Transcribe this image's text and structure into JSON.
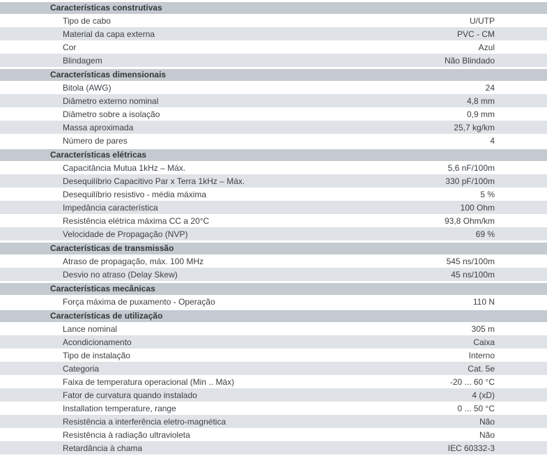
{
  "colors": {
    "header_band": "#c4cad0",
    "row_alt": "#dfe3e7",
    "text": "#3b3f42",
    "header_text": "#33373a"
  },
  "table": {
    "sections": [
      {
        "title": "Características construtivas",
        "rows": [
          {
            "label": "Tipo de cabo",
            "value": "U/UTP"
          },
          {
            "label": "Material da capa externa",
            "value": "PVC - CM"
          },
          {
            "label": "Cor",
            "value": "Azul"
          },
          {
            "label": "Blindagem",
            "value": "Não Blindado"
          }
        ]
      },
      {
        "title": "Características dimensionais",
        "rows": [
          {
            "label": "Bitola (AWG)",
            "value": "24"
          },
          {
            "label": "Diâmetro externo nominal",
            "value": "4,8 mm"
          },
          {
            "label": "Diâmetro sobre a isolação",
            "value": "0,9 mm"
          },
          {
            "label": "Massa aproximada",
            "value": "25,7 kg/km"
          },
          {
            "label": "Número de pares",
            "value": "4"
          }
        ]
      },
      {
        "title": "Características elétricas",
        "rows": [
          {
            "label": "Capacitância Mutua 1kHz – Máx.",
            "value": "5,6 nF/100m"
          },
          {
            "label": "Desequilíbrio Capacitivo Par x Terra 1kHz – Máx.",
            "value": "330 pF/100m"
          },
          {
            "label": "Desequilíbrio resistivo - média máxima",
            "value": "5 %"
          },
          {
            "label": "Impedância característica",
            "value": "100 Ohm"
          },
          {
            "label": "Resistência elétrica máxima CC a 20°C",
            "value": "93,8 Ohm/km"
          },
          {
            "label": "Velocidade de Propagação (NVP)",
            "value": "69 %"
          }
        ]
      },
      {
        "title": "Características de transmissão",
        "rows": [
          {
            "label": "Atraso de propagação, máx. 100 MHz",
            "value": "545 ns/100m"
          },
          {
            "label": "Desvio no atraso (Delay Skew)",
            "value": "45 ns/100m"
          }
        ]
      },
      {
        "title": "Características mecânicas",
        "rows": [
          {
            "label": "Força máxima de puxamento - Operação",
            "value": "110 N"
          }
        ]
      },
      {
        "title": "Características de utilização",
        "rows": [
          {
            "label": "Lance nominal",
            "value": "305 m"
          },
          {
            "label": "Acondicionamento",
            "value": "Caixa"
          },
          {
            "label": "Tipo de instalação",
            "value": "Interno"
          },
          {
            "label": "Categoria",
            "value": "Cat. 5e"
          },
          {
            "label": "Faixa de temperatura operacional (Min .. Máx)",
            "value": "-20 ... 60 °C"
          },
          {
            "label": "Fator de curvatura quando instalado",
            "value": "4 (xD)"
          },
          {
            "label": "Installation temperature, range",
            "value": "0 ... 50 °C"
          },
          {
            "label": "Resistência a interferência eletro-magnética",
            "value": "Não"
          },
          {
            "label": "Resistência à radiação ultravioleta",
            "value": "Não"
          },
          {
            "label": "Retardância à chama",
            "value": "IEC 60332-3"
          }
        ]
      }
    ]
  }
}
